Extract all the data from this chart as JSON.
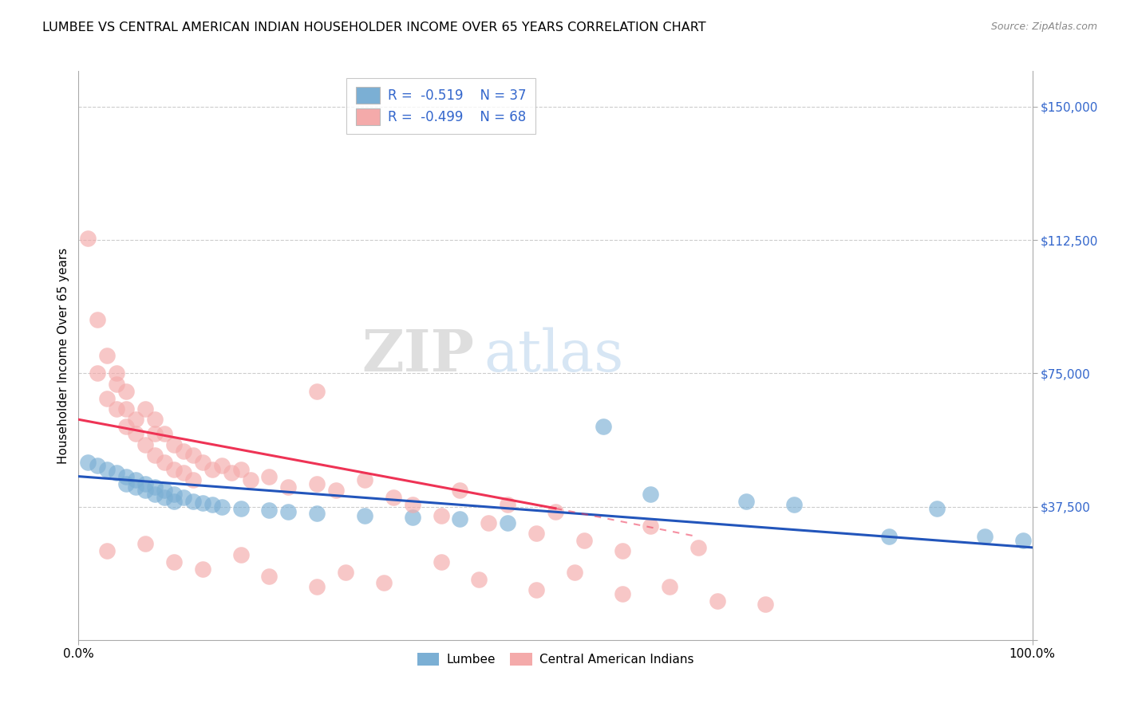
{
  "title": "LUMBEE VS CENTRAL AMERICAN INDIAN HOUSEHOLDER INCOME OVER 65 YEARS CORRELATION CHART",
  "source": "Source: ZipAtlas.com",
  "ylabel": "Householder Income Over 65 years",
  "lumbee_label": "Lumbee",
  "cai_label": "Central American Indians",
  "blue_color": "#7BAFD4",
  "pink_color": "#F4AAAA",
  "line_blue": "#2255BB",
  "line_pink": "#EE3355",
  "watermark_zip": "ZIP",
  "watermark_atlas": "atlas",
  "xlim": [
    0,
    100
  ],
  "ylim": [
    0,
    160000
  ],
  "yticks": [
    0,
    37500,
    75000,
    112500,
    150000
  ],
  "ytick_labels": [
    "",
    "$37,500",
    "$75,000",
    "$112,500",
    "$150,000"
  ],
  "grid_color": "#CCCCCC",
  "lumbee_x": [
    1,
    2,
    3,
    4,
    5,
    5,
    6,
    6,
    7,
    7,
    8,
    8,
    9,
    9,
    10,
    10,
    11,
    12,
    13,
    14,
    15,
    17,
    20,
    22,
    25,
    30,
    35,
    40,
    45,
    55,
    60,
    70,
    75,
    85,
    90,
    95,
    99
  ],
  "lumbee_y": [
    50000,
    49000,
    48000,
    47000,
    46000,
    44000,
    45000,
    43000,
    44000,
    42000,
    43000,
    41000,
    42000,
    40000,
    41000,
    39000,
    40000,
    39000,
    38500,
    38000,
    37500,
    37000,
    36500,
    36000,
    35500,
    35000,
    34500,
    34000,
    33000,
    60000,
    41000,
    39000,
    38000,
    29000,
    37000,
    29000,
    28000
  ],
  "cai_x": [
    1,
    2,
    2,
    3,
    3,
    4,
    4,
    4,
    5,
    5,
    5,
    6,
    6,
    7,
    7,
    8,
    8,
    8,
    9,
    9,
    10,
    10,
    11,
    11,
    12,
    12,
    13,
    14,
    15,
    16,
    17,
    18,
    20,
    22,
    25,
    25,
    27,
    30,
    33,
    35,
    38,
    40,
    43,
    45,
    48,
    50,
    53,
    57,
    60,
    65
  ],
  "cai_y": [
    113000,
    90000,
    75000,
    80000,
    68000,
    72000,
    65000,
    75000,
    65000,
    60000,
    70000,
    62000,
    58000,
    65000,
    55000,
    62000,
    58000,
    52000,
    58000,
    50000,
    55000,
    48000,
    53000,
    47000,
    52000,
    45000,
    50000,
    48000,
    49000,
    47000,
    48000,
    45000,
    46000,
    43000,
    44000,
    70000,
    42000,
    45000,
    40000,
    38000,
    35000,
    42000,
    33000,
    38000,
    30000,
    36000,
    28000,
    25000,
    32000,
    26000
  ],
  "cai_low_x": [
    3,
    7,
    10,
    13,
    17,
    20,
    25,
    28,
    32,
    38,
    42,
    48,
    52,
    57,
    62,
    67,
    72
  ],
  "cai_low_y": [
    25000,
    27000,
    22000,
    20000,
    24000,
    18000,
    15000,
    19000,
    16000,
    22000,
    17000,
    14000,
    19000,
    13000,
    15000,
    11000,
    10000
  ],
  "blue_line_x0": 0,
  "blue_line_y0": 46000,
  "blue_line_x1": 100,
  "blue_line_y1": 26000,
  "pink_line_x0": 0,
  "pink_line_y0": 62000,
  "pink_line_x1": 50,
  "pink_line_y1": 37000,
  "pink_dash_x0": 50,
  "pink_dash_y0": 37000,
  "pink_dash_x1": 65,
  "pink_dash_y1": 29000
}
